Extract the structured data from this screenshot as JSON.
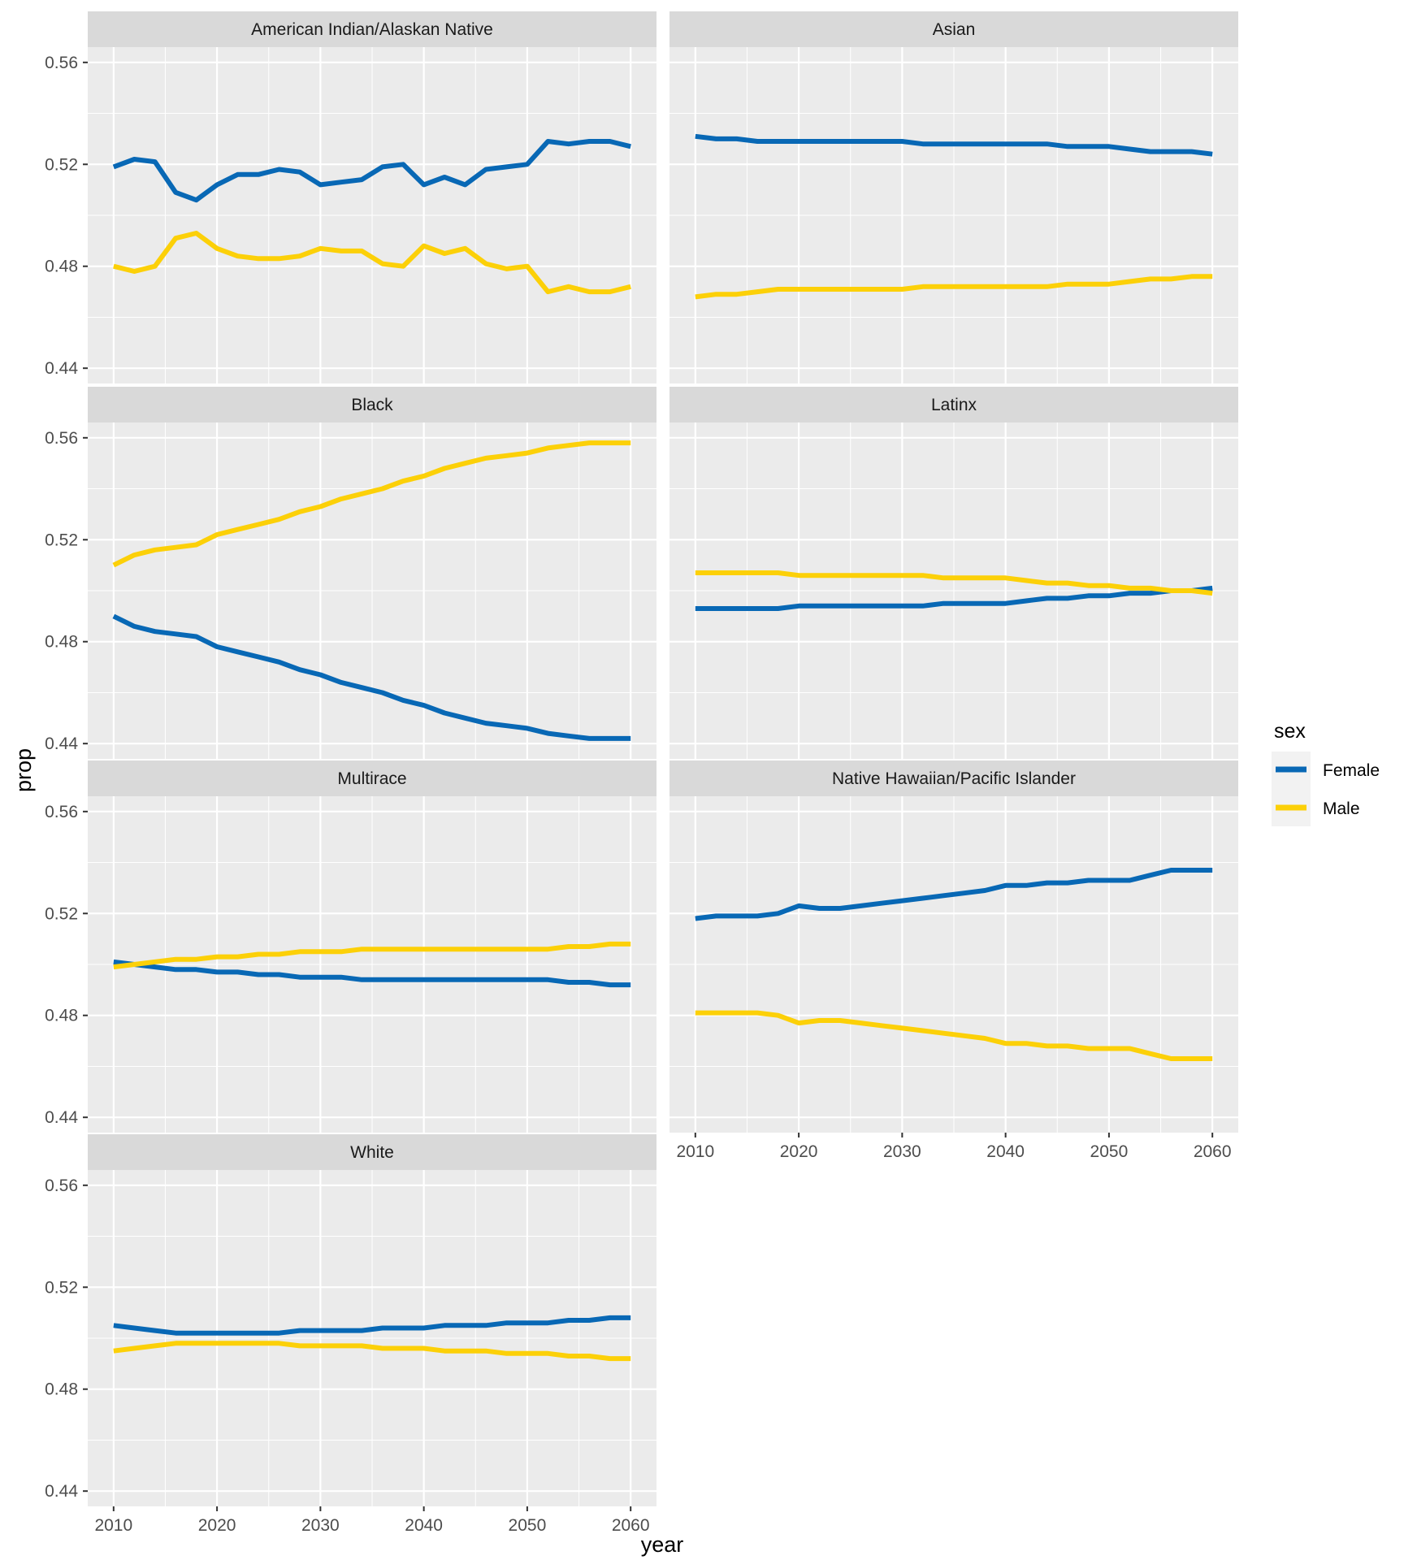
{
  "chart_data": {
    "type": "line",
    "facet_variable": "race",
    "xlabel": "year",
    "ylabel": "prop",
    "xlim": [
      2010,
      2060
    ],
    "ylim": [
      0.44,
      0.56
    ],
    "x_ticks": [
      "2010",
      "2020",
      "2030",
      "2040",
      "2050",
      "2060"
    ],
    "y_ticks": [
      "0.44",
      "0.48",
      "0.52",
      "0.56"
    ],
    "grid": true,
    "legend": {
      "title": "sex",
      "position": "right",
      "entries": [
        {
          "label": "Female",
          "color": "#0868b5"
        },
        {
          "label": "Male",
          "color": "#fcd008"
        }
      ]
    },
    "x": [
      2010,
      2012,
      2014,
      2016,
      2018,
      2020,
      2022,
      2024,
      2026,
      2028,
      2030,
      2032,
      2034,
      2036,
      2038,
      2040,
      2042,
      2044,
      2046,
      2048,
      2050,
      2052,
      2054,
      2056,
      2058,
      2060
    ],
    "panels": [
      {
        "title": "American Indian/Alaskan Native",
        "series": [
          {
            "name": "Female",
            "values": [
              0.519,
              0.522,
              0.521,
              0.509,
              0.506,
              0.512,
              0.516,
              0.516,
              0.518,
              0.517,
              0.512,
              0.513,
              0.514,
              0.519,
              0.52,
              0.512,
              0.515,
              0.512,
              0.518,
              0.519,
              0.52,
              0.529,
              0.528,
              0.529,
              0.529,
              0.527
            ]
          },
          {
            "name": "Male",
            "values": [
              0.48,
              0.478,
              0.48,
              0.491,
              0.493,
              0.487,
              0.484,
              0.483,
              0.483,
              0.484,
              0.487,
              0.486,
              0.486,
              0.481,
              0.48,
              0.488,
              0.485,
              0.487,
              0.481,
              0.479,
              0.48,
              0.47,
              0.472,
              0.47,
              0.47,
              0.472
            ]
          }
        ]
      },
      {
        "title": "Asian",
        "series": [
          {
            "name": "Female",
            "values": [
              0.531,
              0.53,
              0.53,
              0.529,
              0.529,
              0.529,
              0.529,
              0.529,
              0.529,
              0.529,
              0.529,
              0.528,
              0.528,
              0.528,
              0.528,
              0.528,
              0.528,
              0.528,
              0.527,
              0.527,
              0.527,
              0.526,
              0.525,
              0.525,
              0.525,
              0.524
            ]
          },
          {
            "name": "Male",
            "values": [
              0.468,
              0.469,
              0.469,
              0.47,
              0.471,
              0.471,
              0.471,
              0.471,
              0.471,
              0.471,
              0.471,
              0.472,
              0.472,
              0.472,
              0.472,
              0.472,
              0.472,
              0.472,
              0.473,
              0.473,
              0.473,
              0.474,
              0.475,
              0.475,
              0.476,
              0.476
            ]
          }
        ]
      },
      {
        "title": "Black",
        "series": [
          {
            "name": "Female",
            "values": [
              0.49,
              0.486,
              0.484,
              0.483,
              0.482,
              0.478,
              0.476,
              0.474,
              0.472,
              0.469,
              0.467,
              0.464,
              0.462,
              0.46,
              0.457,
              0.455,
              0.452,
              0.45,
              0.448,
              0.447,
              0.446,
              0.444,
              0.443,
              0.442,
              0.442,
              0.442
            ]
          },
          {
            "name": "Male",
            "values": [
              0.51,
              0.514,
              0.516,
              0.517,
              0.518,
              0.522,
              0.524,
              0.526,
              0.528,
              0.531,
              0.533,
              0.536,
              0.538,
              0.54,
              0.543,
              0.545,
              0.548,
              0.55,
              0.552,
              0.553,
              0.554,
              0.556,
              0.557,
              0.558,
              0.558,
              0.558
            ]
          }
        ]
      },
      {
        "title": "Latinx",
        "series": [
          {
            "name": "Female",
            "values": [
              0.493,
              0.493,
              0.493,
              0.493,
              0.493,
              0.494,
              0.494,
              0.494,
              0.494,
              0.494,
              0.494,
              0.494,
              0.495,
              0.495,
              0.495,
              0.495,
              0.496,
              0.497,
              0.497,
              0.498,
              0.498,
              0.499,
              0.499,
              0.5,
              0.5,
              0.501
            ]
          },
          {
            "name": "Male",
            "values": [
              0.507,
              0.507,
              0.507,
              0.507,
              0.507,
              0.506,
              0.506,
              0.506,
              0.506,
              0.506,
              0.506,
              0.506,
              0.505,
              0.505,
              0.505,
              0.505,
              0.504,
              0.503,
              0.503,
              0.502,
              0.502,
              0.501,
              0.501,
              0.5,
              0.5,
              0.499
            ]
          }
        ]
      },
      {
        "title": "Multirace",
        "series": [
          {
            "name": "Female",
            "values": [
              0.501,
              0.5,
              0.499,
              0.498,
              0.498,
              0.497,
              0.497,
              0.496,
              0.496,
              0.495,
              0.495,
              0.495,
              0.494,
              0.494,
              0.494,
              0.494,
              0.494,
              0.494,
              0.494,
              0.494,
              0.494,
              0.494,
              0.493,
              0.493,
              0.492,
              0.492
            ]
          },
          {
            "name": "Male",
            "values": [
              0.499,
              0.5,
              0.501,
              0.502,
              0.502,
              0.503,
              0.503,
              0.504,
              0.504,
              0.505,
              0.505,
              0.505,
              0.506,
              0.506,
              0.506,
              0.506,
              0.506,
              0.506,
              0.506,
              0.506,
              0.506,
              0.506,
              0.507,
              0.507,
              0.508,
              0.508
            ]
          }
        ]
      },
      {
        "title": "Native Hawaiian/Pacific Islander",
        "series": [
          {
            "name": "Female",
            "values": [
              0.518,
              0.519,
              0.519,
              0.519,
              0.52,
              0.523,
              0.522,
              0.522,
              0.523,
              0.524,
              0.525,
              0.526,
              0.527,
              0.528,
              0.529,
              0.531,
              0.531,
              0.532,
              0.532,
              0.533,
              0.533,
              0.533,
              0.535,
              0.537,
              0.537,
              0.537
            ]
          },
          {
            "name": "Male",
            "values": [
              0.481,
              0.481,
              0.481,
              0.481,
              0.48,
              0.477,
              0.478,
              0.478,
              0.477,
              0.476,
              0.475,
              0.474,
              0.473,
              0.472,
              0.471,
              0.469,
              0.469,
              0.468,
              0.468,
              0.467,
              0.467,
              0.467,
              0.465,
              0.463,
              0.463,
              0.463
            ]
          }
        ]
      },
      {
        "title": "White",
        "series": [
          {
            "name": "Female",
            "values": [
              0.505,
              0.504,
              0.503,
              0.502,
              0.502,
              0.502,
              0.502,
              0.502,
              0.502,
              0.503,
              0.503,
              0.503,
              0.503,
              0.504,
              0.504,
              0.504,
              0.505,
              0.505,
              0.505,
              0.506,
              0.506,
              0.506,
              0.507,
              0.507,
              0.508,
              0.508
            ]
          },
          {
            "name": "Male",
            "values": [
              0.495,
              0.496,
              0.497,
              0.498,
              0.498,
              0.498,
              0.498,
              0.498,
              0.498,
              0.497,
              0.497,
              0.497,
              0.497,
              0.496,
              0.496,
              0.496,
              0.495,
              0.495,
              0.495,
              0.494,
              0.494,
              0.494,
              0.493,
              0.493,
              0.492,
              0.492
            ]
          }
        ]
      }
    ]
  }
}
